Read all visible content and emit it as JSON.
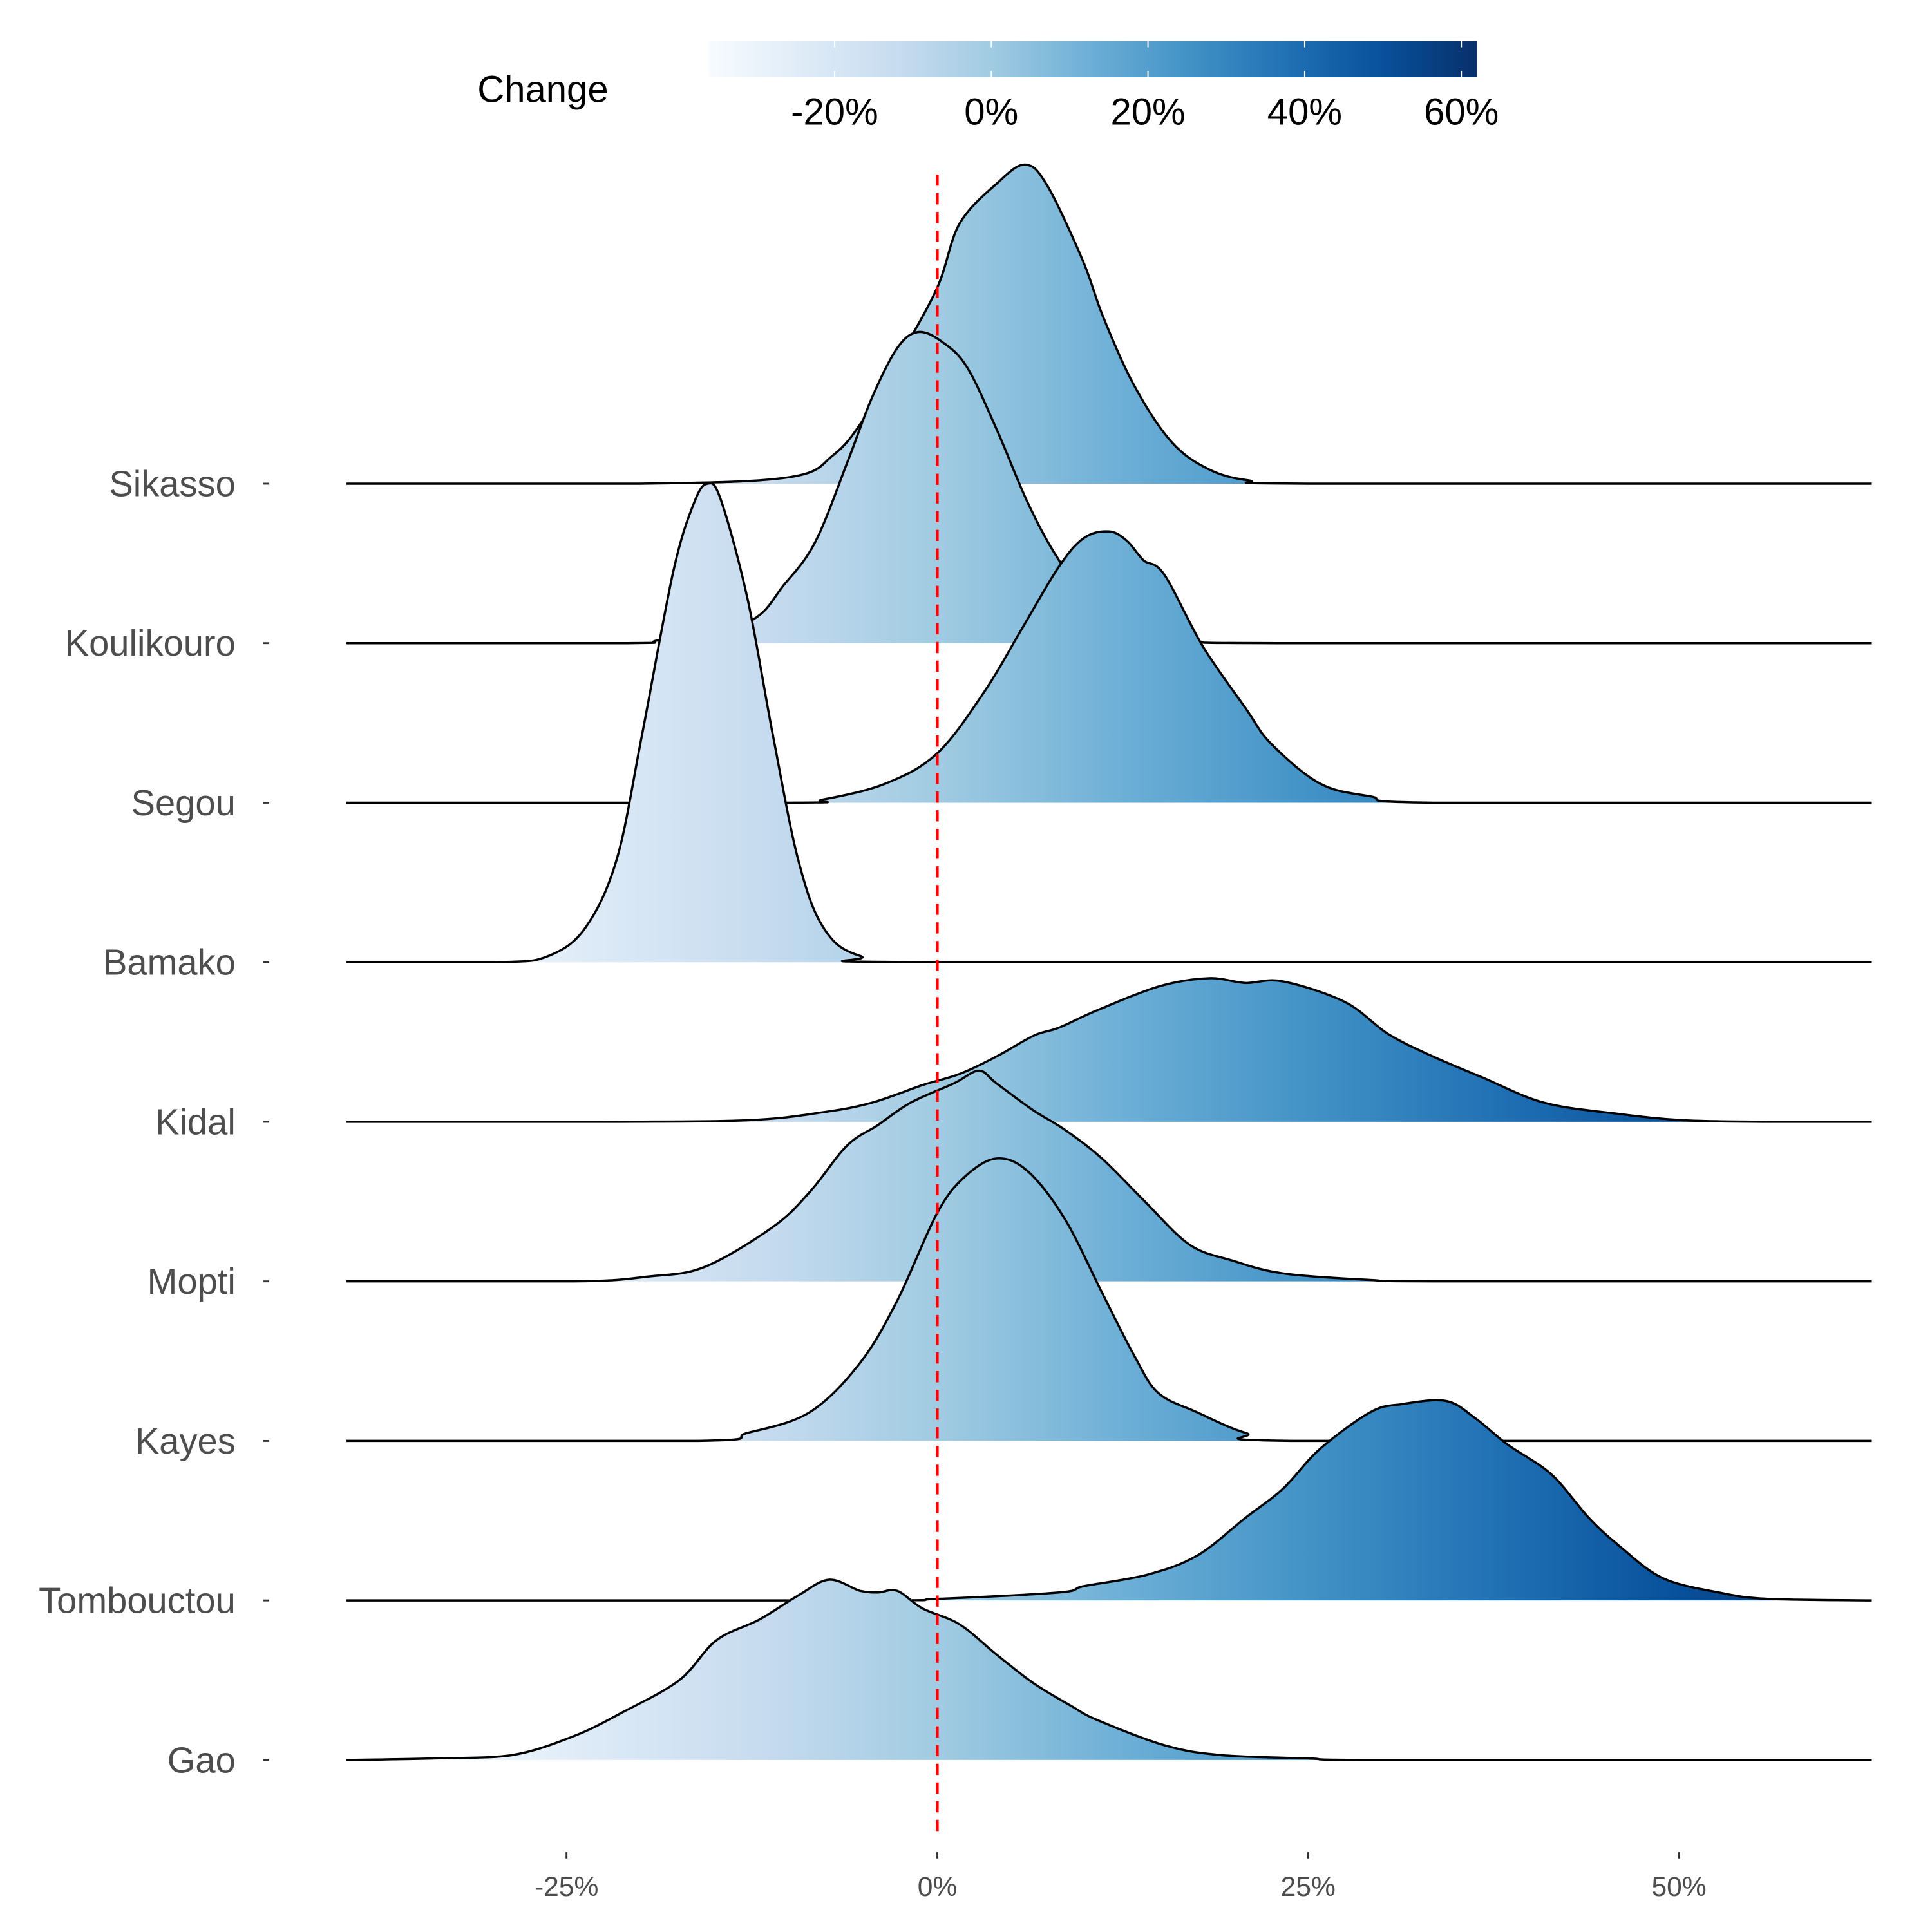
{
  "chart_data": {
    "type": "ridgeline",
    "title": "",
    "xlabel": "",
    "ylabel": "",
    "xlim": [
      -40,
      63
    ],
    "x_ticks": [
      -25,
      0,
      25,
      50
    ],
    "x_tick_labels": [
      "-25%",
      "0%",
      "25%",
      "50%"
    ],
    "reference_line": {
      "x": 0,
      "color": "#ff0000",
      "style": "dashed"
    },
    "legend": {
      "title": "Change",
      "placement": "top",
      "range": [
        -36,
        62
      ],
      "ticks": [
        -20,
        0,
        20,
        40,
        60
      ],
      "tick_labels": [
        "-20%",
        "0%",
        "20%",
        "40%",
        "60%"
      ],
      "palette": [
        "#f7fbff",
        "#deebf7",
        "#c6dbef",
        "#9ecae1",
        "#6baed6",
        "#4292c6",
        "#2171b5",
        "#08519c",
        "#08306b"
      ]
    },
    "series": [
      {
        "name": "Sikasso",
        "points": [
          [
            -40,
            0
          ],
          [
            -20,
            0
          ],
          [
            -10,
            0.04
          ],
          [
            -7,
            0.18
          ],
          [
            -5,
            0.4
          ],
          [
            -2.5,
            0.8
          ],
          [
            0,
            1.23
          ],
          [
            1.5,
            1.63
          ],
          [
            4,
            1.88
          ],
          [
            5.9,
            2.0
          ],
          [
            7.4,
            1.87
          ],
          [
            9.8,
            1.4
          ],
          [
            11.2,
            1.04
          ],
          [
            13.3,
            0.61
          ],
          [
            15.8,
            0.26
          ],
          [
            18.3,
            0.09
          ],
          [
            21,
            0.02
          ],
          [
            25,
            0
          ],
          [
            63,
            0
          ]
        ]
      },
      {
        "name": "Koulikouro",
        "points": [
          [
            -40,
            0
          ],
          [
            -21,
            0
          ],
          [
            -18.7,
            0.02
          ],
          [
            -12.8,
            0.13
          ],
          [
            -10.3,
            0.37
          ],
          [
            -8.2,
            0.64
          ],
          [
            -6,
            1.15
          ],
          [
            -4.4,
            1.54
          ],
          [
            -2.7,
            1.85
          ],
          [
            -1.3,
            1.95
          ],
          [
            0.3,
            1.89
          ],
          [
            2,
            1.73
          ],
          [
            4,
            1.34
          ],
          [
            6.1,
            0.88
          ],
          [
            8.2,
            0.52
          ],
          [
            10.8,
            0.21
          ],
          [
            14,
            0.04
          ],
          [
            17.5,
            0.01
          ],
          [
            23,
            0
          ],
          [
            63,
            0
          ]
        ]
      },
      {
        "name": "Segou",
        "points": [
          [
            -40,
            0
          ],
          [
            -10.3,
            0
          ],
          [
            -7.7,
            0.02
          ],
          [
            -3.5,
            0.12
          ],
          [
            0,
            0.31
          ],
          [
            3.2,
            0.7
          ],
          [
            5.7,
            1.09
          ],
          [
            8.2,
            1.48
          ],
          [
            9.9,
            1.66
          ],
          [
            11.6,
            1.7
          ],
          [
            12.8,
            1.64
          ],
          [
            13.9,
            1.52
          ],
          [
            15.3,
            1.43
          ],
          [
            17.9,
            0.98
          ],
          [
            20.8,
            0.59
          ],
          [
            22.5,
            0.37
          ],
          [
            25.8,
            0.12
          ],
          [
            29.2,
            0.04
          ],
          [
            33.4,
            0
          ],
          [
            63,
            0
          ]
        ]
      },
      {
        "name": "Bamako",
        "points": [
          [
            -40,
            0
          ],
          [
            -29.6,
            0
          ],
          [
            -26.2,
            0.04
          ],
          [
            -23.7,
            0.22
          ],
          [
            -21.6,
            0.65
          ],
          [
            -19.9,
            1.43
          ],
          [
            -17.8,
            2.45
          ],
          [
            -16.4,
            2.88
          ],
          [
            -15.5,
            3.0
          ],
          [
            -14.6,
            2.9
          ],
          [
            -12.8,
            2.28
          ],
          [
            -11.1,
            1.43
          ],
          [
            -9.4,
            0.65
          ],
          [
            -7.7,
            0.22
          ],
          [
            -5.2,
            0.04
          ],
          [
            0,
            0
          ],
          [
            63,
            0
          ]
        ]
      },
      {
        "name": "Kidal",
        "points": [
          [
            -40,
            0
          ],
          [
            -22.8,
            0
          ],
          [
            -12.8,
            0.01
          ],
          [
            -7.7,
            0.06
          ],
          [
            -4.4,
            0.12
          ],
          [
            -1,
            0.23
          ],
          [
            1.5,
            0.3
          ],
          [
            4,
            0.41
          ],
          [
            6.5,
            0.54
          ],
          [
            8.2,
            0.59
          ],
          [
            10.8,
            0.7
          ],
          [
            15,
            0.85
          ],
          [
            18.3,
            0.9
          ],
          [
            20.8,
            0.87
          ],
          [
            23.3,
            0.88
          ],
          [
            27.5,
            0.75
          ],
          [
            30.4,
            0.55
          ],
          [
            33.4,
            0.41
          ],
          [
            36.7,
            0.28
          ],
          [
            40.9,
            0.12
          ],
          [
            45.9,
            0.05
          ],
          [
            50.3,
            0.01
          ],
          [
            56,
            0
          ],
          [
            63,
            0
          ]
        ]
      },
      {
        "name": "Mopti",
        "points": [
          [
            -40,
            0
          ],
          [
            -24.5,
            0
          ],
          [
            -19.5,
            0.03
          ],
          [
            -15.7,
            0.09
          ],
          [
            -11.1,
            0.34
          ],
          [
            -8.6,
            0.56
          ],
          [
            -6.1,
            0.85
          ],
          [
            -4,
            0.98
          ],
          [
            -1.8,
            1.12
          ],
          [
            1.1,
            1.24
          ],
          [
            2.8,
            1.32
          ],
          [
            4,
            1.24
          ],
          [
            6.5,
            1.07
          ],
          [
            8.6,
            0.95
          ],
          [
            11.1,
            0.77
          ],
          [
            14,
            0.5
          ],
          [
            17,
            0.23
          ],
          [
            19.9,
            0.13
          ],
          [
            23.3,
            0.05
          ],
          [
            29,
            0.01
          ],
          [
            34,
            0
          ],
          [
            63,
            0
          ]
        ]
      },
      {
        "name": "Kayes",
        "points": [
          [
            -40,
            0
          ],
          [
            -16.1,
            0
          ],
          [
            -12.8,
            0.05
          ],
          [
            -8.6,
            0.18
          ],
          [
            -5.2,
            0.49
          ],
          [
            -2.7,
            0.88
          ],
          [
            0,
            1.43
          ],
          [
            1.9,
            1.66
          ],
          [
            4,
            1.77
          ],
          [
            6.1,
            1.69
          ],
          [
            8.6,
            1.39
          ],
          [
            11.1,
            0.93
          ],
          [
            13.3,
            0.53
          ],
          [
            14.9,
            0.3
          ],
          [
            17.5,
            0.18
          ],
          [
            20.8,
            0.05
          ],
          [
            24.2,
            0
          ],
          [
            63,
            0
          ]
        ]
      },
      {
        "name": "Tombouctou",
        "points": [
          [
            -40,
            0
          ],
          [
            -5,
            0
          ],
          [
            0,
            0.01
          ],
          [
            8.2,
            0.05
          ],
          [
            9.9,
            0.09
          ],
          [
            14.1,
            0.16
          ],
          [
            17.5,
            0.28
          ],
          [
            20.8,
            0.52
          ],
          [
            23.3,
            0.7
          ],
          [
            25.8,
            0.95
          ],
          [
            29.2,
            1.18
          ],
          [
            31.3,
            1.23
          ],
          [
            34.3,
            1.25
          ],
          [
            36.3,
            1.14
          ],
          [
            38.4,
            0.98
          ],
          [
            41.4,
            0.79
          ],
          [
            43.9,
            0.52
          ],
          [
            46,
            0.34
          ],
          [
            48.9,
            0.14
          ],
          [
            52.7,
            0.05
          ],
          [
            56,
            0.01
          ],
          [
            63,
            0
          ]
        ]
      },
      {
        "name": "Gao",
        "points": [
          [
            -40,
            0
          ],
          [
            -33.8,
            0.01
          ],
          [
            -28.7,
            0.03
          ],
          [
            -24.5,
            0.15
          ],
          [
            -21.2,
            0.3
          ],
          [
            -17.4,
            0.5
          ],
          [
            -14.9,
            0.75
          ],
          [
            -12,
            0.88
          ],
          [
            -9.4,
            1.03
          ],
          [
            -7.3,
            1.13
          ],
          [
            -5.2,
            1.06
          ],
          [
            -4,
            1.05
          ],
          [
            -2.7,
            1.06
          ],
          [
            -1,
            0.95
          ],
          [
            1.5,
            0.85
          ],
          [
            4,
            0.66
          ],
          [
            6.5,
            0.48
          ],
          [
            9,
            0.34
          ],
          [
            10.8,
            0.25
          ],
          [
            15.4,
            0.09
          ],
          [
            19.2,
            0.03
          ],
          [
            25,
            0.01
          ],
          [
            30,
            0
          ],
          [
            63,
            0
          ]
        ]
      }
    ]
  }
}
